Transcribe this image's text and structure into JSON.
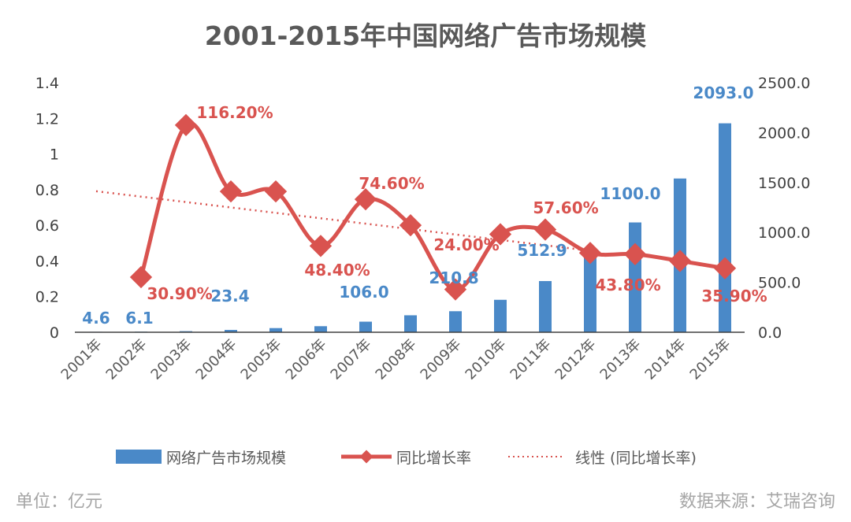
{
  "chart_data": {
    "type": "bar+line",
    "title": "2001-2015年中国网络广告市场规模",
    "categories": [
      "2001年",
      "2002年",
      "2003年",
      "2004年",
      "2005年",
      "2006年",
      "2007年",
      "2008年",
      "2009年",
      "2010年",
      "2011年",
      "2012年",
      "2013年",
      "2014年",
      "2015年"
    ],
    "left_axis": {
      "ylim": [
        0,
        1.4
      ],
      "ticks": [
        "0",
        "0.2",
        "0.4",
        "0.6",
        "0.8",
        "1",
        "1.2",
        "1.4"
      ]
    },
    "right_axis": {
      "ylim": [
        0,
        2500
      ],
      "ticks": [
        "0.0",
        "500.0",
        "1000.0",
        "1500.0",
        "2000.0",
        "2500.0"
      ]
    },
    "series": [
      {
        "name": "网络广告市场规模",
        "type": "bar",
        "axis": "right",
        "color": "#4a89c8",
        "values": [
          4.6,
          6.1,
          10.8,
          23.4,
          41.7,
          60.7,
          106.0,
          170.0,
          210.8,
          325.0,
          512.9,
          753.1,
          1100.0,
          1540.0,
          2093.0
        ],
        "labels": [
          "4.6",
          "6.1",
          "",
          "23.4",
          "",
          "",
          "106.0",
          "",
          "210.8",
          "",
          "512.9",
          "",
          "1100.0",
          "",
          "2093.0"
        ]
      },
      {
        "name": "同比增长率",
        "type": "line",
        "axis": "left",
        "color": "#d9534f",
        "values": [
          null,
          0.309,
          1.162,
          0.79,
          0.79,
          0.484,
          0.746,
          0.6,
          0.24,
          0.55,
          0.576,
          0.445,
          0.438,
          0.4,
          0.359
        ],
        "labels": [
          "",
          "30.90%",
          "116.20%",
          "",
          "",
          "48.40%",
          "74.60%",
          "",
          "24.00%",
          "",
          "57.60%",
          "",
          "43.80%",
          "",
          "35.90%"
        ]
      },
      {
        "name": "线性 (同比增长率)",
        "type": "trendline",
        "axis": "left",
        "color": "#d9534f"
      }
    ],
    "legend": "bottom",
    "grid": false,
    "unit_note": "单位：亿元",
    "source_note": "数据来源：艾瑞咨询"
  }
}
